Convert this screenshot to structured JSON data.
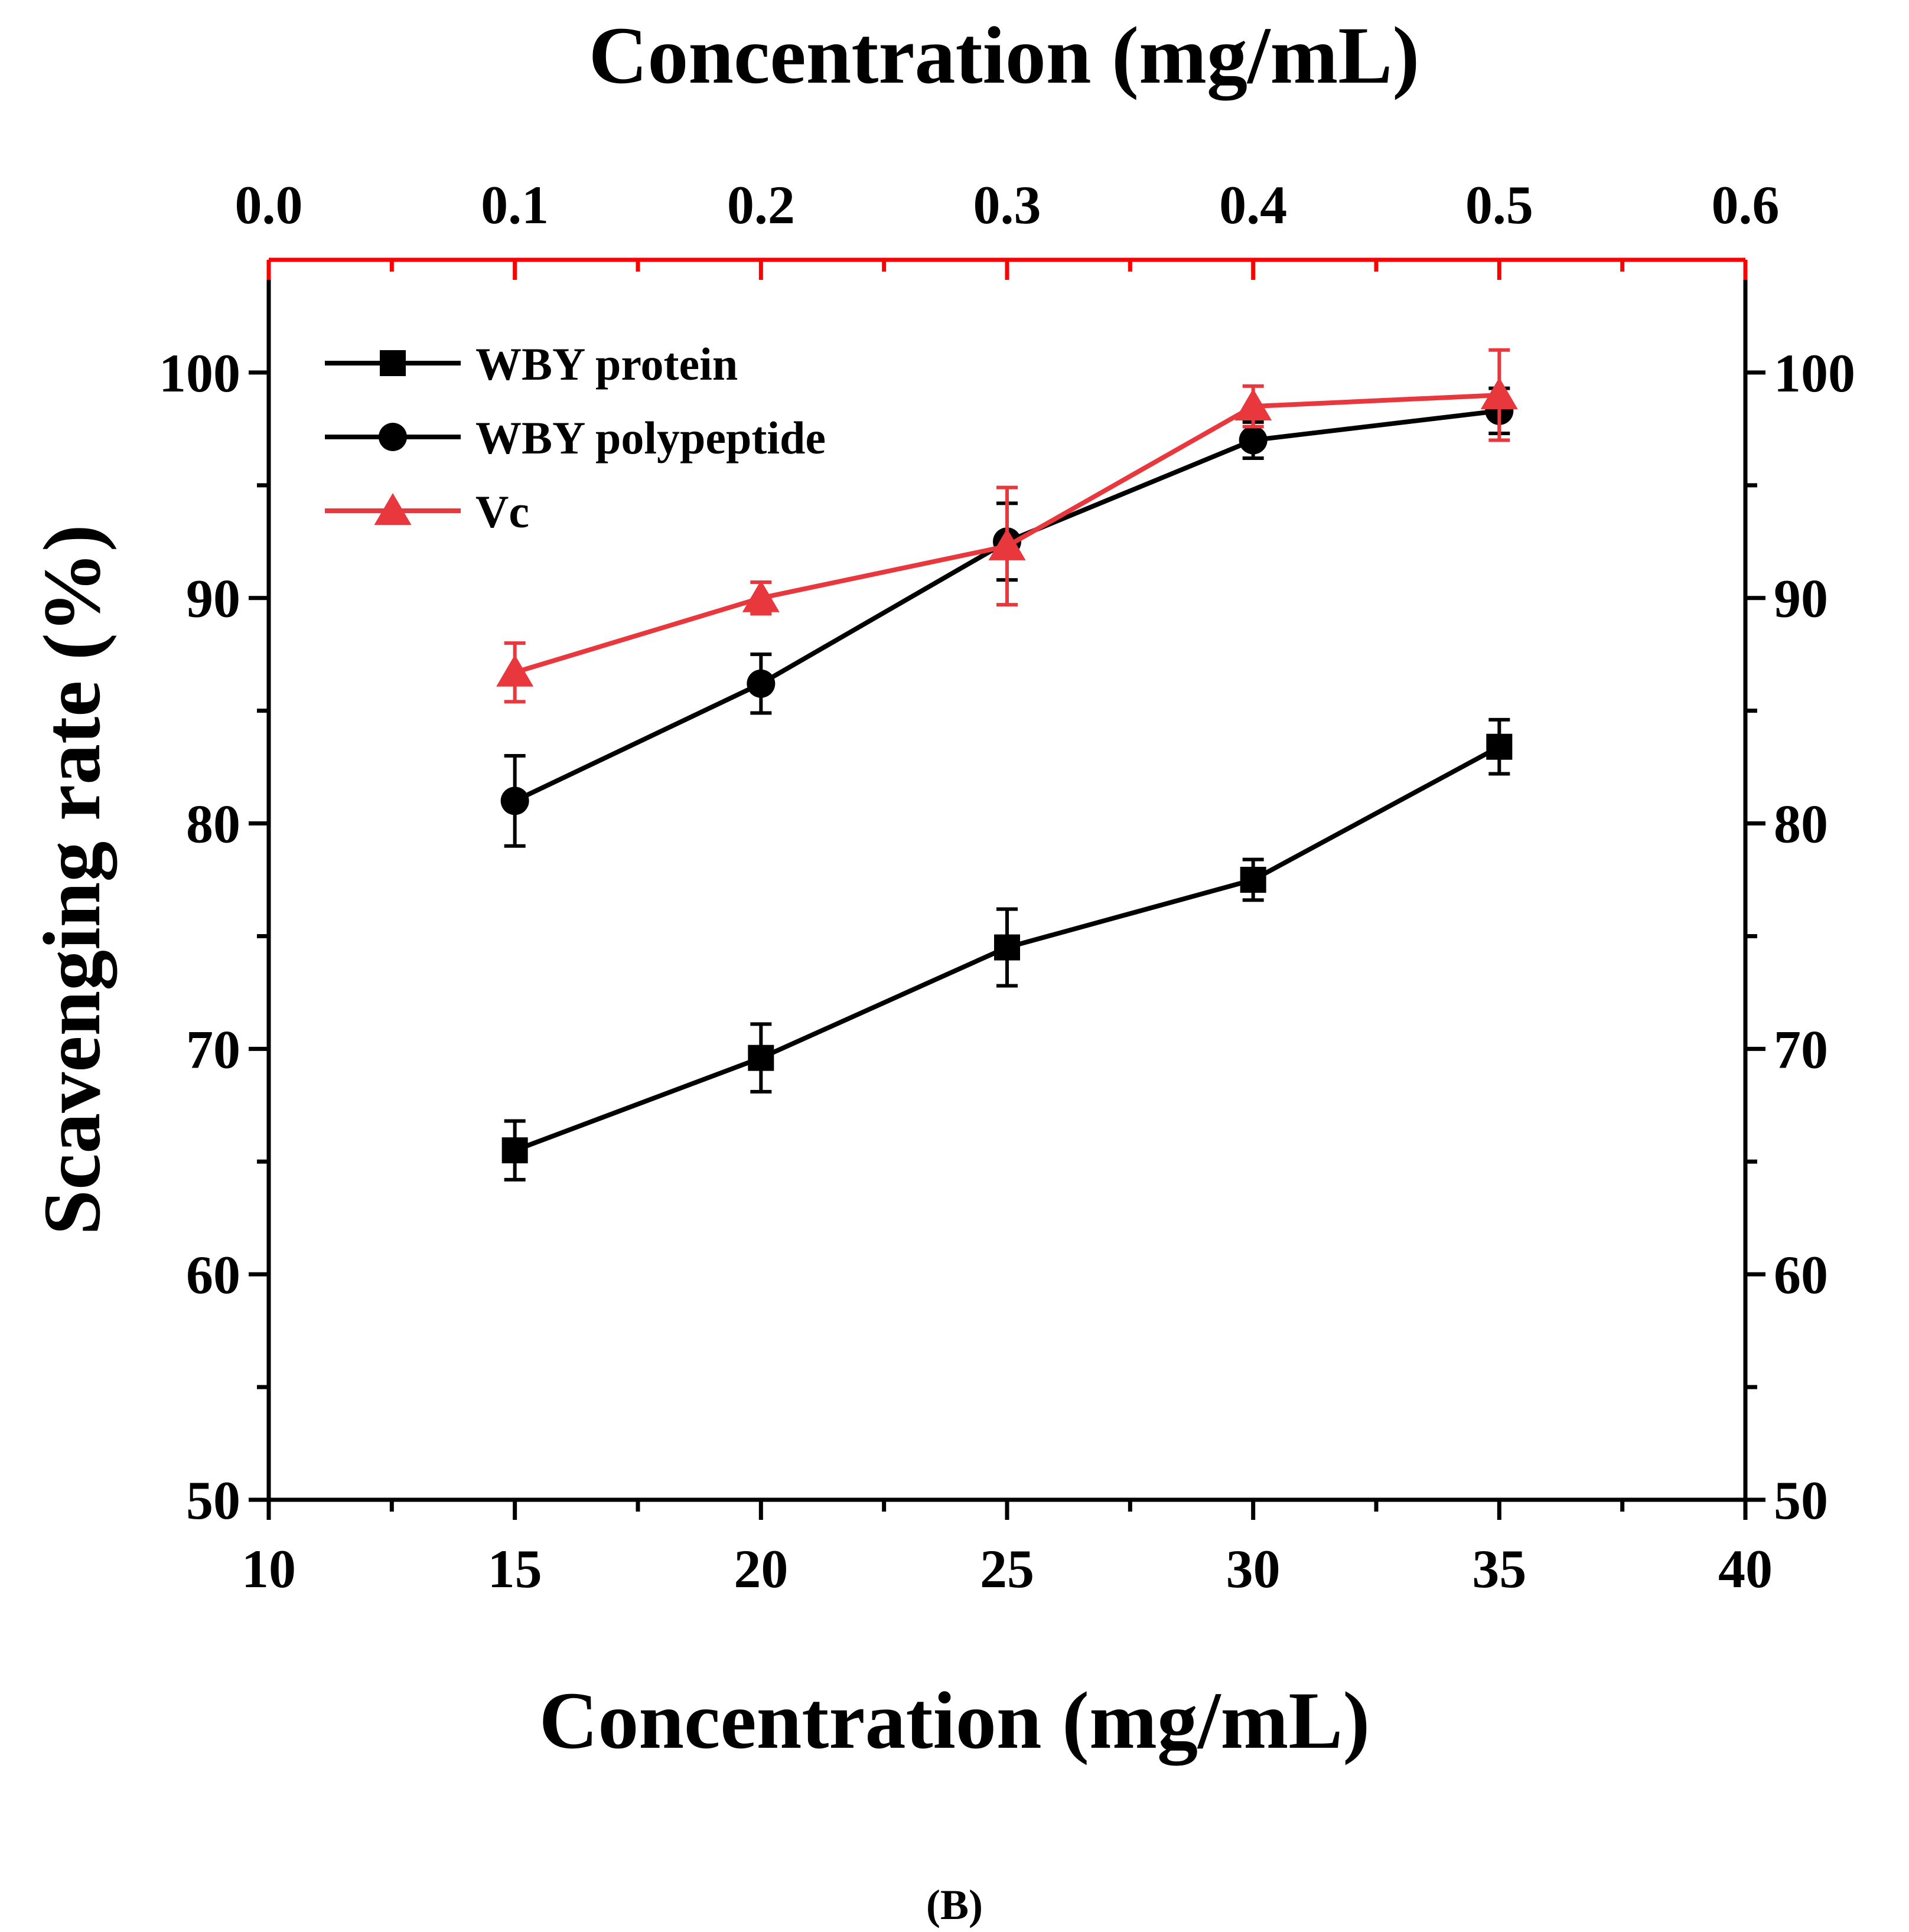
{
  "chart_data": {
    "type": "line",
    "panel_label": "(B)",
    "xlabel": "Concentration (mg/mL)",
    "x2label": "Concentration (mg/mL)",
    "ylabel": "Scavenging rate (%)",
    "xlim": [
      10,
      40
    ],
    "x2lim": [
      0.0,
      0.6
    ],
    "ylim": [
      50,
      105
    ],
    "xticks": [
      "10",
      "15",
      "20",
      "25",
      "30",
      "35",
      "40"
    ],
    "x2ticks": [
      "0.0",
      "0.1",
      "0.2",
      "0.3",
      "0.4",
      "0.5",
      "0.6"
    ],
    "yticks": [
      "50",
      "60",
      "70",
      "80",
      "90",
      "100"
    ],
    "grid": false,
    "legend_position": "top-left",
    "colors": {
      "black": "#000000",
      "red": "#e8383d",
      "top_axis": "#ff0000"
    },
    "series": [
      {
        "name": "WBY protein",
        "axis": "bottom",
        "marker": "square",
        "color": "#000000",
        "x": [
          15,
          20,
          25,
          30,
          35
        ],
        "y": [
          65.5,
          69.6,
          74.5,
          77.5,
          83.4
        ],
        "err": [
          1.3,
          1.5,
          1.7,
          0.9,
          1.2
        ]
      },
      {
        "name": "WBY polypeptide",
        "axis": "bottom",
        "marker": "circle",
        "color": "#000000",
        "x": [
          15,
          20,
          25,
          30,
          35
        ],
        "y": [
          81.0,
          86.2,
          92.5,
          97.0,
          98.3
        ],
        "err": [
          2.0,
          1.3,
          1.7,
          0.8,
          1.0
        ]
      },
      {
        "name": "Vc",
        "axis": "top",
        "marker": "triangle",
        "color": "#e8383d",
        "x": [
          0.1,
          0.2,
          0.3,
          0.4,
          0.5
        ],
        "y": [
          86.7,
          90.0,
          92.3,
          98.5,
          99.0
        ],
        "err": [
          1.3,
          0.7,
          2.6,
          0.9,
          2.0
        ]
      }
    ]
  }
}
